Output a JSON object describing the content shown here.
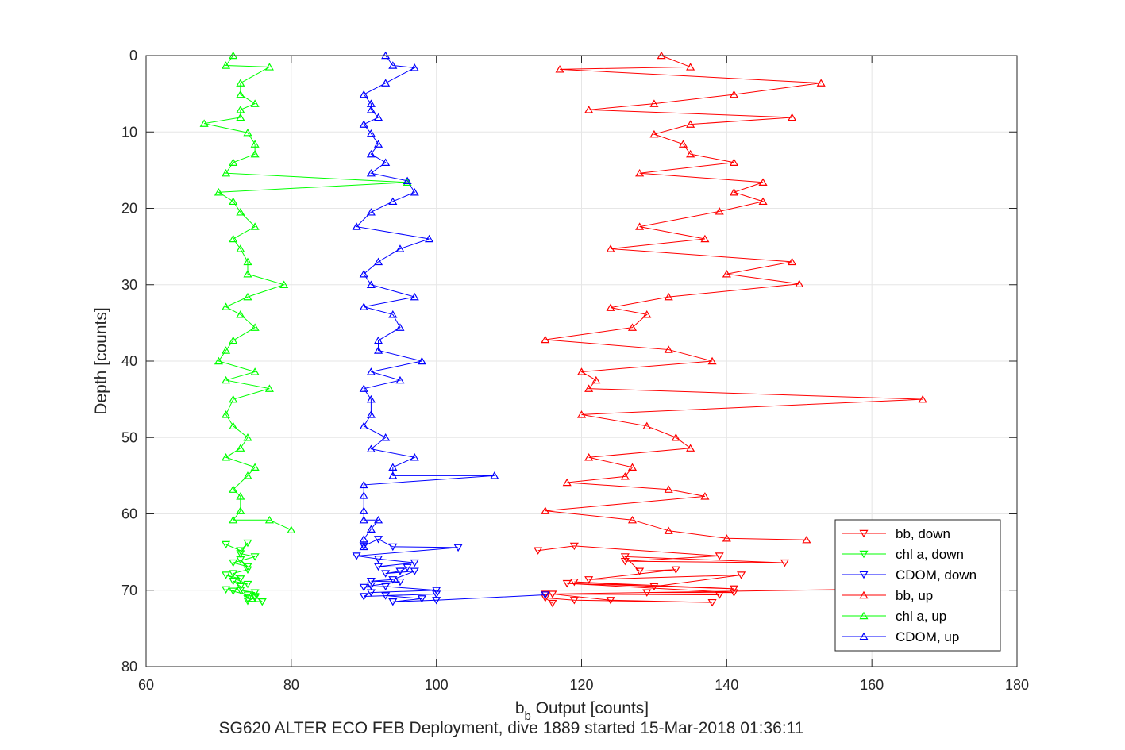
{
  "chart_data": {
    "type": "line",
    "xlabel_main": "b",
    "xlabel_sub": "b",
    "xlabel_rest": " Output [counts]",
    "ylabel": "Depth [counts]",
    "caption": "SG620 ALTER ECO FEB Deployment, dive 1889 started 15-Mar-2018 01:36:11",
    "xlim": [
      60,
      180
    ],
    "ylim": [
      0,
      80
    ],
    "y_reversed": true,
    "grid": true,
    "legend_position": "bottom-right",
    "xticks": [
      60,
      80,
      100,
      120,
      140,
      160,
      180
    ],
    "yticks": [
      0,
      10,
      20,
      30,
      40,
      50,
      60,
      70,
      80
    ],
    "series": [
      {
        "name": "bb, down",
        "color": "#ff0000",
        "marker": "triangle-down",
        "x": [
          114,
          119,
          139,
          126,
          148,
          126,
          128,
          133,
          121,
          142,
          130,
          119,
          141,
          118,
          141,
          129,
          163,
          115,
          139,
          116,
          124,
          138,
          119,
          115,
          116
        ],
        "y": [
          64.8,
          64.2,
          65.5,
          66.2,
          66.4,
          65.6,
          67.5,
          67.3,
          68.6,
          68,
          69.5,
          68.9,
          69.8,
          69.1,
          70.3,
          70.3,
          69.8,
          70.5,
          70.6,
          70.5,
          71.3,
          71.6,
          71.3,
          71.0,
          71.7
        ]
      },
      {
        "name": "chl a, down",
        "color": "#00ff00",
        "marker": "triangle-down",
        "x": [
          71,
          73,
          74,
          73,
          75,
          72,
          74,
          73,
          74,
          72,
          73,
          71,
          74,
          72,
          73,
          72,
          71,
          74,
          75,
          73,
          74,
          75,
          74,
          76,
          75
        ],
        "y": [
          64.0,
          64.8,
          63.8,
          65.2,
          65.6,
          66.4,
          66.9,
          66.0,
          67.3,
          67.8,
          68.5,
          68.0,
          69.2,
          68.8,
          69.5,
          70.1,
          69.9,
          70.6,
          70.3,
          70.0,
          71.1,
          71.0,
          71.4,
          71.5,
          70.8
        ]
      },
      {
        "name": "CDOM, down",
        "color": "#0000ff",
        "marker": "triangle-down",
        "x": [
          90,
          92,
          94,
          103,
          89,
          92,
          97,
          92,
          96,
          95,
          93,
          97,
          94,
          91,
          95,
          91,
          90,
          93,
          100,
          91,
          90,
          100,
          93,
          98,
          94,
          100,
          115
        ],
        "y": [
          64.2,
          63.3,
          64.3,
          64.4,
          65.5,
          65.9,
          66.4,
          66.9,
          67.0,
          67.5,
          67.8,
          67.5,
          68.6,
          68.8,
          68.9,
          69.4,
          69.6,
          69.5,
          70.0,
          70.3,
          70.8,
          70.5,
          70.7,
          71.1,
          71.5,
          71.3,
          70.6
        ]
      },
      {
        "name": "bb, up",
        "color": "#ff0000",
        "marker": "triangle-up",
        "x": [
          131,
          135,
          117,
          153,
          141,
          130,
          121,
          149,
          135,
          130,
          134,
          135,
          141,
          128,
          145,
          141,
          145,
          139,
          128,
          137,
          124,
          149,
          140,
          150,
          132,
          124,
          129,
          127,
          115,
          132,
          138,
          120,
          122,
          121,
          167,
          120,
          129,
          133,
          135,
          121,
          127,
          126,
          118,
          132,
          137,
          115,
          127,
          132,
          140,
          151
        ],
        "y": [
          0,
          1.5,
          1.8,
          3.6,
          5.1,
          6.3,
          7.1,
          8.1,
          9.0,
          10.3,
          11.6,
          12.9,
          14.0,
          15.4,
          16.6,
          17.9,
          19.1,
          20.4,
          22.4,
          24.0,
          25.3,
          27.0,
          28.6,
          29.9,
          31.6,
          33.0,
          33.9,
          35.6,
          37.2,
          38.5,
          40.0,
          41.4,
          42.5,
          43.6,
          45.0,
          47.0,
          48.5,
          50.0,
          51.4,
          52.6,
          53.9,
          55.1,
          55.9,
          56.8,
          57.7,
          59.6,
          60.8,
          62.2,
          63.2,
          63.4
        ]
      },
      {
        "name": "chl a, up",
        "color": "#00ff00",
        "marker": "triangle-up",
        "x": [
          72,
          71,
          77,
          73,
          73,
          75,
          73,
          73,
          68,
          74,
          75,
          75,
          72,
          71,
          96,
          70,
          72,
          73,
          75,
          72,
          73,
          74,
          74,
          79,
          74,
          71,
          73,
          75,
          72,
          71,
          70,
          75,
          71,
          77,
          72,
          71,
          72,
          74,
          73,
          71,
          75,
          74,
          72,
          73,
          73,
          72,
          77,
          80
        ],
        "y": [
          0,
          1.3,
          1.5,
          3.6,
          5.1,
          6.3,
          7.1,
          8.1,
          8.9,
          10.1,
          11.6,
          12.9,
          14.0,
          15.4,
          16.6,
          17.9,
          19.1,
          20.5,
          22.4,
          24.0,
          25.3,
          27.0,
          28.6,
          30.0,
          31.6,
          32.9,
          33.9,
          35.6,
          37.3,
          38.6,
          40.0,
          41.4,
          42.5,
          43.6,
          45.0,
          47.0,
          48.5,
          50.0,
          51.4,
          52.6,
          53.9,
          55.0,
          56.8,
          57.7,
          59.6,
          60.8,
          60.8,
          62.1
        ]
      },
      {
        "name": "CDOM, up",
        "color": "#0000ff",
        "marker": "triangle-up",
        "x": [
          93,
          94,
          97,
          93,
          90,
          91,
          91,
          92,
          90,
          91,
          92,
          91,
          93,
          91,
          96,
          97,
          94,
          91,
          89,
          99,
          95,
          92,
          90,
          91,
          97,
          90,
          94,
          95,
          92,
          92,
          98,
          91,
          95,
          90,
          91,
          91,
          90,
          93,
          91,
          97,
          94,
          94,
          108,
          90,
          90,
          90,
          90,
          92,
          91,
          90,
          90
        ],
        "y": [
          0,
          1.3,
          1.6,
          3.6,
          5.1,
          6.3,
          7.1,
          8.1,
          9.0,
          10.2,
          11.6,
          12.9,
          14.0,
          15.4,
          16.4,
          17.9,
          19.1,
          20.5,
          22.4,
          24.0,
          25.3,
          27.0,
          28.6,
          30.0,
          31.6,
          32.9,
          33.9,
          35.6,
          37.3,
          38.6,
          40.0,
          41.4,
          42.5,
          43.6,
          45.0,
          47.0,
          48.5,
          50.0,
          51.5,
          52.6,
          53.9,
          55.0,
          55.0,
          56.2,
          57.6,
          59.6,
          60.8,
          60.8,
          62.0,
          63.3,
          64.3
        ]
      }
    ]
  }
}
